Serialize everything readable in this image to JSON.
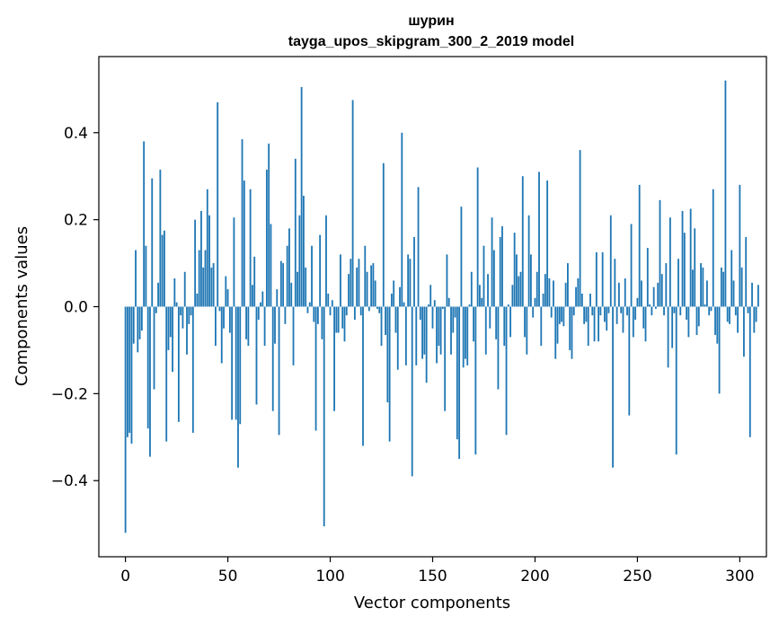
{
  "chart_data": {
    "type": "bar",
    "title": "шурин",
    "subtitle": "tayga_upos_skipgram_300_2_2019 model",
    "xlabel": "Vector components",
    "ylabel": "Components values",
    "xlim": [
      -13,
      313
    ],
    "ylim": [
      -0.575,
      0.575
    ],
    "xticks": [
      0,
      50,
      100,
      150,
      200,
      250,
      300
    ],
    "xtick_labels": [
      "0",
      "50",
      "100",
      "150",
      "200",
      "250",
      "300"
    ],
    "yticks": [
      -0.4,
      -0.2,
      0.0,
      0.2,
      0.4
    ],
    "ytick_labels": [
      "−0.4",
      "−0.2",
      "0.0",
      "0.2",
      "0.4"
    ],
    "grid": false,
    "bar_color": "#1f77b4",
    "values": [
      -0.52,
      -0.3,
      -0.29,
      -0.315,
      -0.085,
      0.13,
      -0.105,
      -0.075,
      -0.055,
      0.38,
      0.14,
      -0.28,
      -0.345,
      0.295,
      -0.19,
      -0.015,
      0.055,
      0.315,
      0.165,
      0.175,
      -0.31,
      -0.1,
      -0.07,
      -0.15,
      0.065,
      0.01,
      -0.265,
      -0.02,
      -0.05,
      0.08,
      -0.11,
      -0.04,
      -0.02,
      -0.29,
      0.2,
      0.03,
      0.13,
      0.22,
      0.09,
      0.13,
      0.27,
      0.21,
      0.09,
      0.1,
      -0.09,
      0.47,
      -0.01,
      -0.13,
      -0.05,
      0.07,
      0.04,
      -0.06,
      -0.26,
      0.205,
      -0.26,
      -0.37,
      -0.27,
      0.385,
      0.29,
      -0.075,
      -0.09,
      0.27,
      0.05,
      0.115,
      -0.225,
      -0.03,
      0.01,
      0.035,
      -0.09,
      0.315,
      0.375,
      0.19,
      -0.24,
      -0.085,
      0.04,
      -0.295,
      0.105,
      0.1,
      -0.04,
      0.14,
      0.18,
      0.055,
      -0.135,
      0.34,
      0.08,
      0.21,
      0.505,
      0.255,
      0.09,
      -0.015,
      0.01,
      0.14,
      -0.035,
      -0.285,
      -0.04,
      0.165,
      -0.075,
      -0.505,
      0.21,
      0.03,
      -0.02,
      0.015,
      -0.24,
      -0.06,
      -0.06,
      0.12,
      -0.05,
      -0.08,
      -0.02,
      0.075,
      0.11,
      0.475,
      -0.03,
      0.09,
      0.11,
      -0.02,
      -0.32,
      0.14,
      0.08,
      -0.01,
      0.095,
      0.1,
      0.06,
      -0.005,
      -0.015,
      -0.09,
      0.33,
      -0.065,
      -0.22,
      -0.31,
      0.03,
      0.06,
      -0.06,
      -0.145,
      0.045,
      0.4,
      0.01,
      -0.135,
      0.12,
      0.11,
      -0.39,
      0.16,
      -0.135,
      0.275,
      -0.03,
      -0.12,
      -0.11,
      -0.175,
      0.005,
      0.05,
      -0.05,
      0.015,
      -0.13,
      -0.09,
      -0.11,
      -0.005,
      -0.24,
      0.12,
      0.02,
      -0.11,
      -0.06,
      -0.025,
      -0.305,
      -0.35,
      0.23,
      -0.14,
      -0.12,
      -0.135,
      0.005,
      0.08,
      -0.08,
      -0.34,
      0.32,
      0.05,
      0.02,
      0.14,
      -0.11,
      0.075,
      -0.05,
      0.205,
      0.13,
      -0.075,
      -0.19,
      0.16,
      0.185,
      -0.09,
      -0.295,
      0.005,
      -0.07,
      0.05,
      0.17,
      0.12,
      0.07,
      0.08,
      0.3,
      -0.07,
      -0.11,
      0.21,
      0.12,
      -0.025,
      0.02,
      0.08,
      0.31,
      -0.09,
      0.03,
      0.075,
      0.29,
      0.065,
      -0.025,
      0.06,
      -0.12,
      -0.085,
      -0.04,
      -0.035,
      -0.045,
      0.055,
      0.1,
      -0.1,
      -0.12,
      -0.02,
      0.045,
      0.065,
      0.36,
      0.03,
      -0.04,
      -0.035,
      -0.09,
      0.03,
      -0.02,
      -0.08,
      0.125,
      -0.08,
      -0.02,
      0.125,
      -0.035,
      -0.055,
      -0.015,
      0.21,
      -0.37,
      0.11,
      -0.04,
      0.055,
      -0.015,
      -0.06,
      0.065,
      -0.02,
      -0.25,
      0.19,
      -0.07,
      -0.03,
      0.02,
      0.28,
      0.06,
      -0.05,
      -0.08,
      0.135,
      0.005,
      -0.02,
      0.045,
      -0.005,
      0.055,
      0.245,
      0.075,
      -0.02,
      0.1,
      -0.14,
      0.205,
      -0.095,
      -0.015,
      -0.34,
      0.11,
      -0.02,
      0.22,
      0.17,
      -0.03,
      -0.07,
      0.225,
      0.085,
      0.18,
      -0.065,
      -0.045,
      0.1,
      0.09,
      0.005,
      0.06,
      -0.02,
      -0.01,
      0.27,
      -0.065,
      -0.085,
      -0.2,
      0.09,
      0.08,
      0.52,
      -0.035,
      -0.04,
      0.13,
      0.06,
      -0.02,
      -0.06,
      0.28,
      0.09,
      -0.115,
      0.16,
      -0.015,
      -0.3,
      0.055,
      -0.06,
      -0.035,
      0.05
    ]
  }
}
